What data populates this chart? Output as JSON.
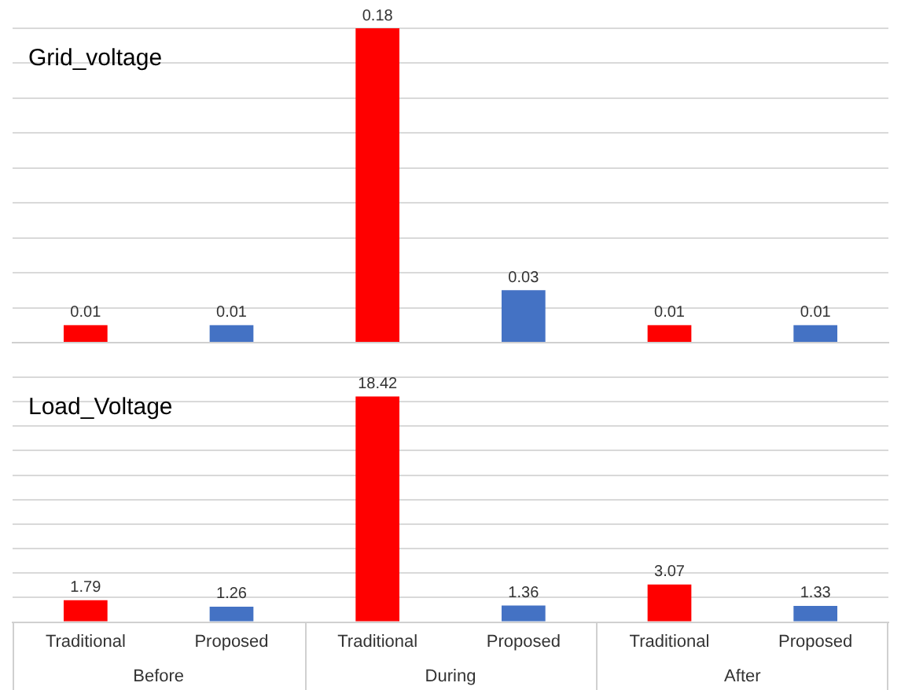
{
  "chart_data": [
    {
      "type": "bar",
      "title": "Grid_voltage",
      "categories": [
        null,
        null,
        null,
        null,
        null,
        null
      ],
      "values": [
        0.01,
        0.01,
        0.18,
        0.03,
        0.01,
        0.01
      ],
      "colors": [
        "#ff0000",
        "#4472c4",
        "#ff0000",
        "#4472c4",
        "#ff0000",
        "#4472c4"
      ],
      "ylim": [
        0,
        0.18
      ],
      "yticks": [
        {
          "value": 0,
          "label": null
        },
        {
          "value": 0.02,
          "label": null
        },
        {
          "value": 0.04,
          "label": null
        },
        {
          "value": 0.06,
          "label": null
        },
        {
          "value": 0.08,
          "label": null
        },
        {
          "value": 0.1,
          "label": null
        },
        {
          "value": 0.12,
          "label": null
        },
        {
          "value": 0.14,
          "label": null
        },
        {
          "value": 0.16,
          "label": null
        },
        {
          "value": 0.18,
          "label": null
        }
      ],
      "grid": "y",
      "data_labels": true,
      "tick_labels": false,
      "legend": false
    },
    {
      "type": "bar",
      "title": "Load_Voltage",
      "categories": [
        "Traditional",
        "Proposed",
        "Traditional",
        "Proposed",
        "Traditional",
        "Proposed"
      ],
      "values": [
        1.79,
        1.26,
        18.42,
        1.36,
        3.07,
        1.33
      ],
      "colors": [
        "#ff0000",
        "#4472c4",
        "#ff0000",
        "#4472c4",
        "#ff0000",
        "#4472c4"
      ],
      "ylim": [
        0,
        20
      ],
      "yticks": [
        {
          "value": 0,
          "label": null
        },
        {
          "value": 2,
          "label": null
        },
        {
          "value": 4,
          "label": null
        },
        {
          "value": 6,
          "label": null
        },
        {
          "value": 8,
          "label": null
        },
        {
          "value": 10,
          "label": null
        },
        {
          "value": 12,
          "label": null
        },
        {
          "value": 14,
          "label": null
        },
        {
          "value": 16,
          "label": null
        },
        {
          "value": 18,
          "label": null
        },
        {
          "value": 20,
          "label": null
        }
      ],
      "grid": "y",
      "data_labels": true,
      "tick_labels": "x",
      "legend": false,
      "annotations": [
        "Before",
        "During",
        "After"
      ]
    }
  ]
}
